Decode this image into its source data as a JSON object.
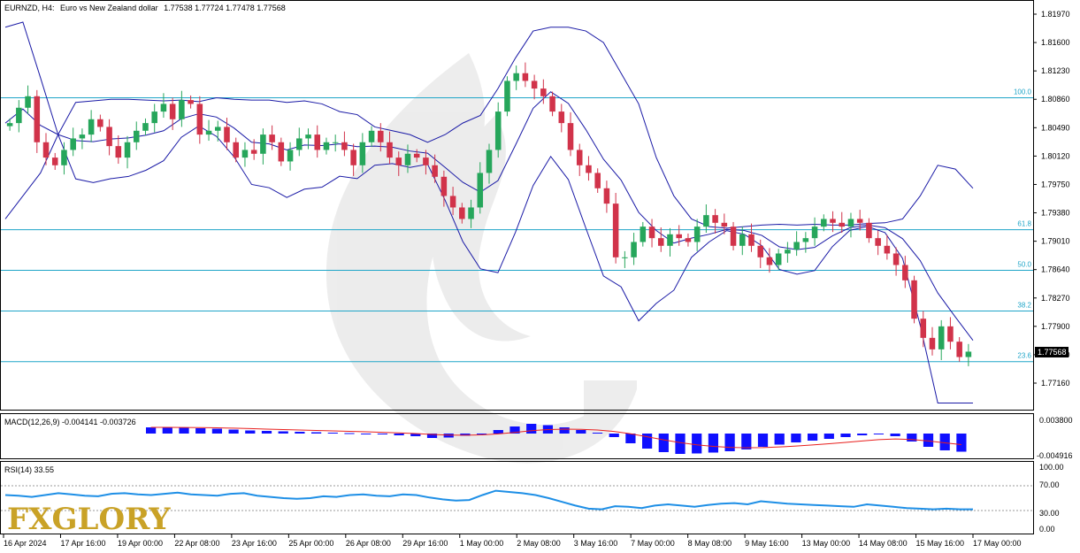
{
  "header": {
    "symbol": "EURNZD, H4:",
    "description": "Euro vs New Zealand dollar",
    "ohlc": "1.77538 1.77724 1.77478 1.77568"
  },
  "price_axis": {
    "ticks": [
      "1.81970",
      "1.81600",
      "1.81230",
      "1.80860",
      "1.80490",
      "1.80120",
      "1.79750",
      "1.79380",
      "1.79010",
      "1.78640",
      "1.78270",
      "1.77900",
      "1.77530",
      "1.77160"
    ],
    "current_price": "1.77568"
  },
  "fib_levels": [
    {
      "label": "100.0",
      "price": 1.8088
    },
    {
      "label": "61.8",
      "price": 1.7916
    },
    {
      "label": "50.0",
      "price": 1.7863
    },
    {
      "label": "38.2",
      "price": 1.781
    },
    {
      "label": "23.6",
      "price": 1.7744
    }
  ],
  "macd": {
    "label": "MACD(12,26,9) -0.004141 -0.003726",
    "ticks": [
      "0.003800",
      "-0.004916"
    ]
  },
  "rsi": {
    "label": "RSI(14) 33.55",
    "ticks": [
      "100.00",
      "70.00",
      "30.00",
      "0.00"
    ]
  },
  "time_axis": [
    "16 Apr 2024",
    "17 Apr 16:00",
    "19 Apr 00:00",
    "22 Apr 08:00",
    "23 Apr 16:00",
    "25 Apr 00:00",
    "26 Apr 08:00",
    "29 Apr 16:00",
    "1 May 00:00",
    "2 May 08:00",
    "3 May 16:00",
    "7 May 00:00",
    "8 May 08:00",
    "9 May 16:00",
    "13 May 00:00",
    "14 May 08:00",
    "15 May 16:00",
    "17 May 00:00"
  ],
  "logo": {
    "text": "FXGLORY"
  },
  "colors": {
    "bull": "#26a65b",
    "bear": "#d1334a",
    "bands": "#1a1aa6",
    "fib": "#1fa5c8",
    "macd_hist": "#1010ff",
    "macd_signal": "#e8201e",
    "rsi": "#1e8fe6"
  },
  "chart_data": {
    "type": "candlestick",
    "title": "EURNZD, H4: Euro vs New Zealand dollar",
    "ylim": [
      1.769,
      1.821
    ],
    "indicators": [
      "Bollinger Bands",
      "Fibonacci retracement",
      "MACD(12,26,9)",
      "RSI(14)"
    ],
    "closes": [
      1.8055,
      1.8075,
      1.809,
      1.803,
      1.801,
      1.8,
      1.802,
      1.8035,
      1.804,
      1.806,
      1.805,
      1.8025,
      1.801,
      1.803,
      1.8045,
      1.8055,
      1.807,
      1.808,
      1.806,
      1.8085,
      1.808,
      1.804,
      1.8045,
      1.805,
      1.803,
      1.801,
      1.802,
      1.8015,
      1.804,
      1.803,
      1.8005,
      1.802,
      1.8035,
      1.804,
      1.802,
      1.803,
      1.803,
      1.802,
      1.8,
      1.803,
      1.8045,
      1.803,
      1.801,
      1.8,
      1.8015,
      1.801,
      1.8,
      1.7985,
      1.796,
      1.7945,
      1.793,
      1.7945,
      1.799,
      1.802,
      1.807,
      1.811,
      1.812,
      1.811,
      1.81,
      1.809,
      1.807,
      1.8055,
      1.802,
      1.8,
      1.799,
      1.797,
      1.795,
      1.788,
      1.788,
      1.79,
      1.792,
      1.7905,
      1.7895,
      1.791,
      1.7905,
      1.79,
      1.792,
      1.7935,
      1.7925,
      1.792,
      1.7895,
      1.791,
      1.7895,
      1.788,
      1.787,
      1.7885,
      1.789,
      1.79,
      1.7905,
      1.792,
      1.793,
      1.7925,
      1.792,
      1.793,
      1.7925,
      1.7905,
      1.7895,
      1.7885,
      1.787,
      1.785,
      1.78,
      1.7775,
      1.776,
      1.779,
      1.777,
      1.775,
      1.7757
    ],
    "bb_upper": [
      1.793,
      1.796,
      1.799,
      1.804,
      1.8082,
      1.8084,
      1.8086,
      1.8086,
      1.8085,
      1.8084,
      1.8085,
      1.8083,
      1.8088,
      1.8086,
      1.8085,
      1.8085,
      1.8082,
      1.8084,
      1.808,
      1.807,
      1.8066,
      1.805,
      1.8045,
      1.804,
      1.803,
      1.804,
      1.8055,
      1.8065,
      1.81,
      1.814,
      1.8175,
      1.818,
      1.818,
      1.8175,
      1.816,
      1.812,
      1.808,
      1.801,
      1.796,
      1.793,
      1.792,
      1.7918,
      1.792,
      1.7922,
      1.7923,
      1.7922,
      1.7923,
      1.7922,
      1.7922,
      1.7924,
      1.7925,
      1.793,
      1.796,
      1.8,
      1.7995,
      1.797
    ],
    "macd_hist": [
      0.0014,
      0.0014,
      0.0013,
      0.0012,
      0.0011,
      0.0009,
      0.0007,
      0.0006,
      0.0005,
      0.0004,
      0.0003,
      0.0002,
      0.0001,
      0.0,
      -0.0002,
      -0.0004,
      -0.0006,
      -0.001,
      -0.0009,
      -0.0005,
      0.0,
      0.0008,
      0.0016,
      0.0022,
      0.0019,
      0.0014,
      0.0008,
      0.0002,
      -0.0008,
      -0.0022,
      -0.0034,
      -0.0042,
      -0.0046,
      -0.0045,
      -0.0043,
      -0.004,
      -0.0036,
      -0.003,
      -0.0025,
      -0.002,
      -0.0016,
      -0.0012,
      -0.0008,
      -0.0004,
      -0.0002,
      -0.0006,
      -0.0018,
      -0.003,
      -0.0038,
      -0.0041
    ],
    "rsi_values": [
      55,
      54,
      52,
      55,
      58,
      56,
      54,
      53,
      57,
      58,
      56,
      55,
      57,
      59,
      56,
      55,
      54,
      57,
      58,
      54,
      52,
      50,
      49,
      50,
      53,
      52,
      55,
      56,
      54,
      53,
      56,
      55,
      51,
      48,
      46,
      47,
      55,
      62,
      60,
      58,
      55,
      50,
      44,
      38,
      33,
      32,
      37,
      36,
      34,
      38,
      40,
      38,
      36,
      39,
      41,
      42,
      40,
      45,
      43,
      41,
      40,
      39,
      38,
      37,
      36,
      40,
      38,
      36,
      34,
      33,
      32,
      33,
      32,
      32
    ]
  }
}
